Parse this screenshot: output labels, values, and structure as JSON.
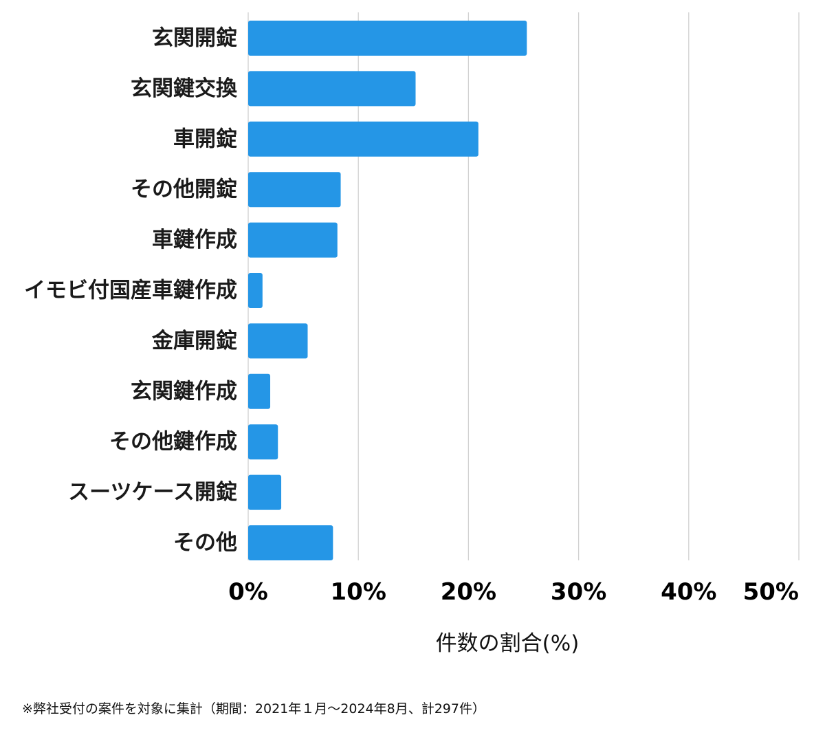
{
  "chart_data": {
    "type": "bar",
    "orientation": "horizontal",
    "categories": [
      "玄関開錠",
      "玄関鍵交換",
      "車開錠",
      "その他開錠",
      "車鍵作成",
      "イモビ付国産車鍵作成",
      "金庫開錠",
      "玄関鍵作成",
      "その他鍵作成",
      "スーツケース開錠",
      "その他"
    ],
    "values": [
      25.3,
      15.2,
      20.9,
      8.4,
      8.1,
      1.3,
      5.4,
      2.0,
      2.7,
      3.0,
      7.7
    ],
    "xlim": [
      0,
      50
    ],
    "xticks": [
      "0%",
      "10%",
      "20%",
      "30%",
      "40%",
      "50%"
    ],
    "xlabel": "件数の割合(%)",
    "grid": true,
    "bar_color": "#2596e6"
  },
  "footnote": "※弊社受付の案件を対象に集計（期間：2021年１月～2024年8月、計297件）"
}
